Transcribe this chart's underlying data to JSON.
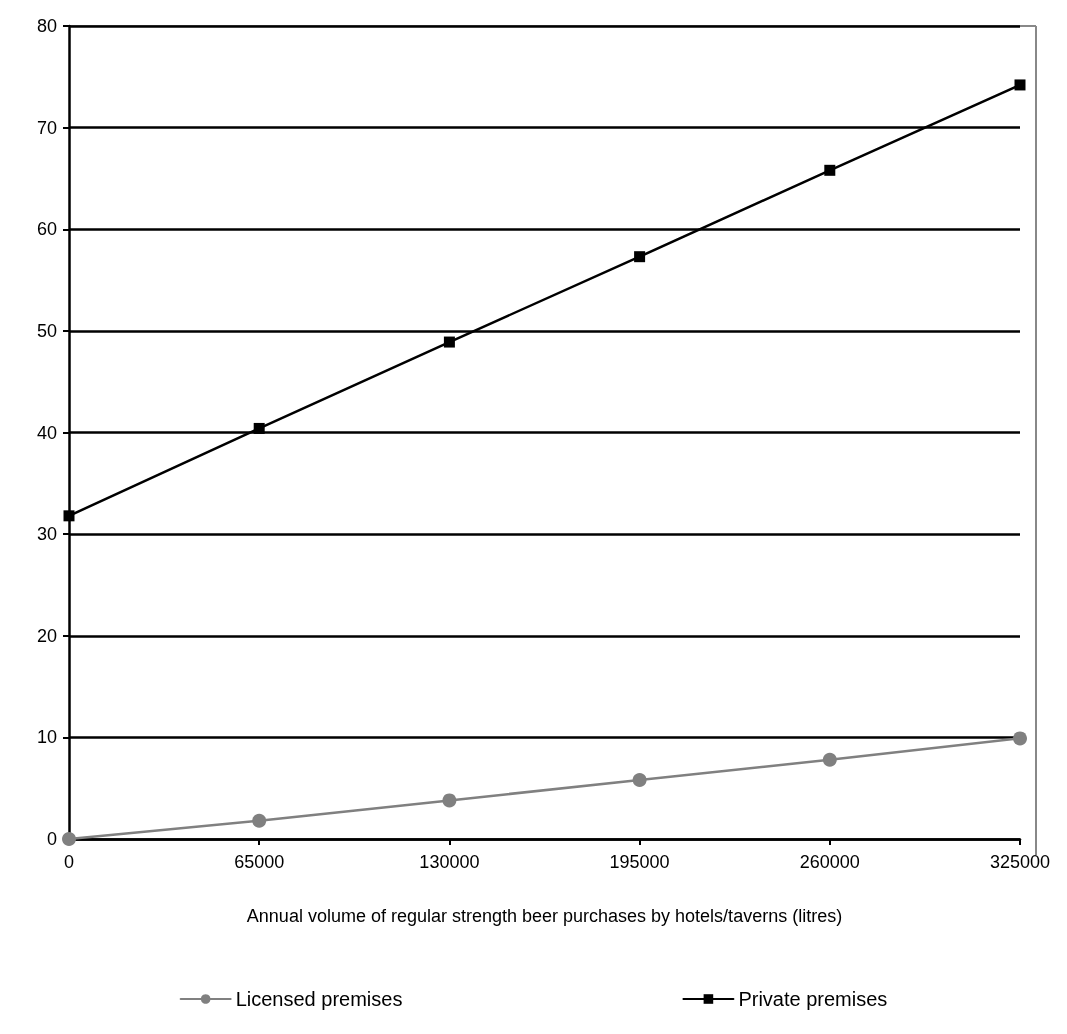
{
  "chart_data": {
    "type": "line",
    "xlabel": "Annual volume of regular strength beer purchases by hotels/taverns (litres)",
    "x": [
      0,
      65000,
      130000,
      195000,
      260000,
      325000
    ],
    "series": [
      {
        "name": "Licensed premises",
        "color": "#808080",
        "marker": "circle",
        "values": [
          0,
          1.8,
          3.8,
          5.8,
          7.8,
          9.9
        ]
      },
      {
        "name": "Private premises",
        "color": "#000000",
        "marker": "square",
        "values": [
          31.8,
          40.4,
          48.9,
          57.3,
          65.8,
          74.2
        ]
      }
    ],
    "xlim": [
      0,
      325000
    ],
    "xticks": [
      0,
      65000,
      130000,
      195000,
      260000,
      325000
    ],
    "ylim": [
      0,
      80
    ],
    "yticks": [
      0,
      10,
      20,
      30,
      40,
      50,
      60,
      70,
      80
    ],
    "grid": "y",
    "legend": "bottom",
    "line_style": "solid"
  }
}
